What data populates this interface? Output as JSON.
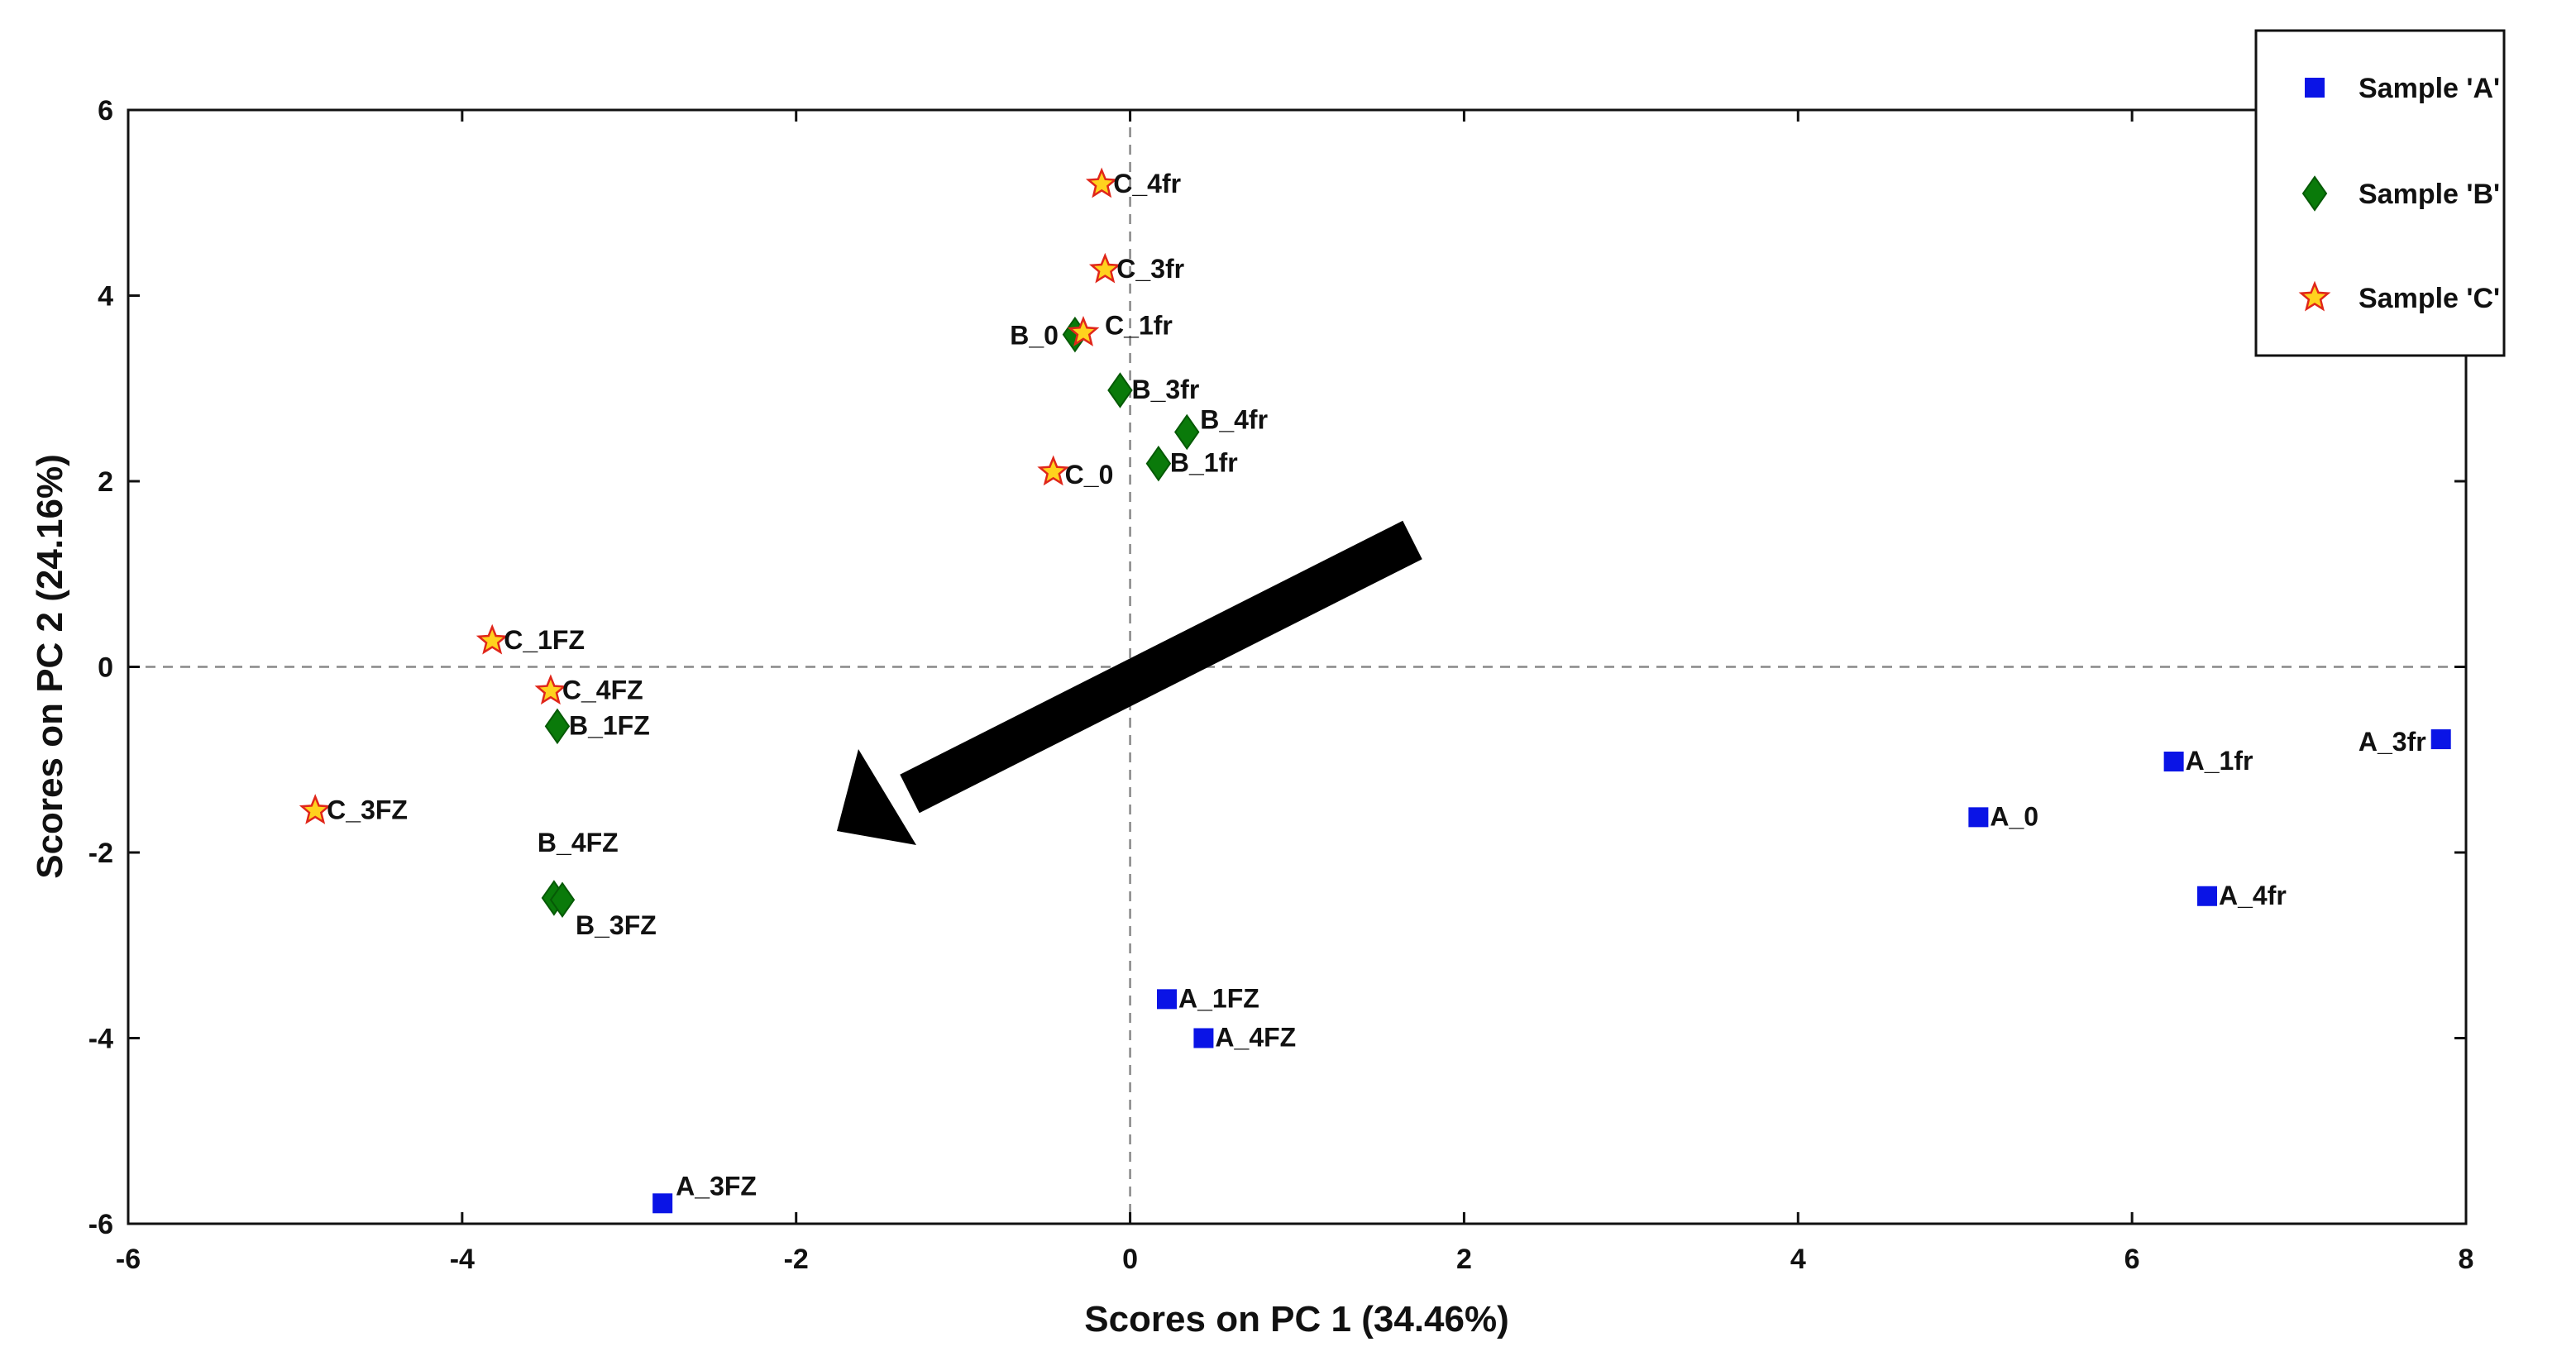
{
  "chart_data": {
    "type": "scatter",
    "title": "",
    "xlabel": "Scores on PC 1 (34.46%)",
    "ylabel": "Scores on PC 2 (24.16%)",
    "xlim": [
      -6,
      8
    ],
    "ylim": [
      -6,
      6
    ],
    "xticks": [
      -6,
      -4,
      -2,
      0,
      2,
      4,
      6,
      8
    ],
    "yticks": [
      -6,
      -4,
      -2,
      0,
      2,
      4,
      6
    ],
    "reference_lines": {
      "x": 0,
      "y": 0,
      "style": "dashed"
    },
    "legend_position": "top-right (outside plot)",
    "annotation": "arrow pointing from upper right toward lower left",
    "colors": {
      "A": "#0a14e6",
      "B": "#0a7a0a",
      "C_fill": "#ffd21e",
      "C_edge": "#e0261a"
    },
    "series": [
      {
        "name": "Sample 'A'",
        "marker": "square",
        "points": [
          {
            "label": "A_0",
            "x": 5.08,
            "y": -1.62
          },
          {
            "label": "A_1fr",
            "x": 6.25,
            "y": -1.02
          },
          {
            "label": "A_3fr",
            "x": 7.85,
            "y": -0.78
          },
          {
            "label": "A_4fr",
            "x": 6.45,
            "y": -2.47
          },
          {
            "label": "A_1FZ",
            "x": 0.22,
            "y": -3.58
          },
          {
            "label": "A_4FZ",
            "x": 0.44,
            "y": -4.0
          },
          {
            "label": "A_3FZ",
            "x": -2.8,
            "y": -5.78
          }
        ]
      },
      {
        "name": "Sample 'B'",
        "marker": "diamond",
        "points": [
          {
            "label": "B_0",
            "x": -0.33,
            "y": 3.58
          },
          {
            "label": "B_3fr",
            "x": -0.06,
            "y": 2.98
          },
          {
            "label": "B_4fr",
            "x": 0.34,
            "y": 2.53
          },
          {
            "label": "B_1fr",
            "x": 0.17,
            "y": 2.19
          },
          {
            "label": "B_1FZ",
            "x": -3.43,
            "y": -0.64
          },
          {
            "label": "B_4FZ",
            "x": -3.45,
            "y": -2.49
          },
          {
            "label": "B_3FZ",
            "x": -3.4,
            "y": -2.51
          }
        ]
      },
      {
        "name": "Sample 'C'",
        "marker": "star",
        "points": [
          {
            "label": "C_4fr",
            "x": -0.17,
            "y": 5.2
          },
          {
            "label": "C_3fr",
            "x": -0.15,
            "y": 4.28
          },
          {
            "label": "C_1fr",
            "x": -0.28,
            "y": 3.6
          },
          {
            "label": "C_0",
            "x": -0.46,
            "y": 2.1
          },
          {
            "label": "C_1FZ",
            "x": -3.82,
            "y": 0.28
          },
          {
            "label": "C_4FZ",
            "x": -3.47,
            "y": -0.26
          },
          {
            "label": "C_3FZ",
            "x": -4.88,
            "y": -1.55
          }
        ]
      }
    ]
  }
}
